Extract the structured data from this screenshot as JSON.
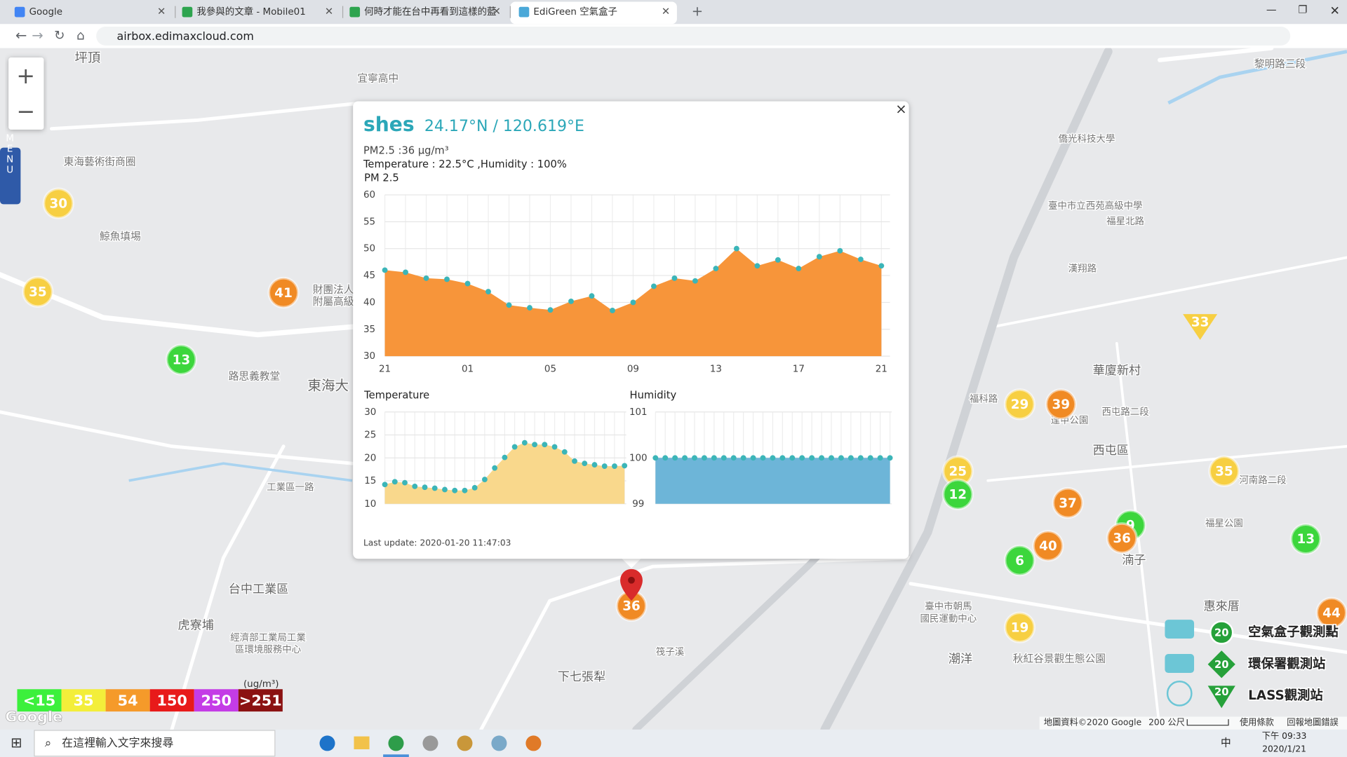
{
  "browser": {
    "tabs": [
      "Google",
      "我參與的文章 - Mobile01",
      "何時才能在台中再看到這樣的藍",
      "EdiGreen 空氣盒子"
    ],
    "url": "airbox.edimaxcloud.com"
  },
  "map": {
    "zoom_in": "+",
    "zoom_out": "−",
    "menu": "MENU",
    "labels": [
      "坪頂",
      "東海藝術街商圈",
      "鯨魚填埸",
      "路思義教堂",
      "東海大",
      "財團法人",
      "附屬高級",
      "宜寧高中",
      "台中工業區",
      "虎寮埔",
      "經濟部工業局工業",
      "區環境服務中心",
      "下七張犁",
      "工業區一路",
      "華廈新村",
      "西屯區",
      "湳子",
      "惠來厝",
      "潮洋",
      "秋紅谷景觀生態公園",
      "臺中市朝馬",
      "國民運動中心",
      "臺中市立西苑高級中學",
      "僑光科技大學",
      "福星北路",
      "福星公園",
      "逢甲公園",
      "黎明路三段",
      "漢翔路",
      "福科路",
      "西屯路二段",
      "河南路二段",
      "筏子溪"
    ],
    "markers": [
      30,
      35,
      41,
      13,
      36,
      29,
      39,
      25,
      12,
      35,
      37,
      9,
      36,
      40,
      6,
      13,
      19,
      44
    ],
    "triangle_marker": 33,
    "legend": {
      "unit": "(ug/m³)",
      "levels": [
        "<15",
        "35",
        "54",
        "150",
        "250",
        ">251"
      ],
      "colors": [
        "#3cf03c",
        "#f3ee3a",
        "#f59a2a",
        "#e81a1a",
        "#c43ce6",
        "#8b1212"
      ]
    },
    "stations": [
      "空氣盒子觀測點",
      "環保署觀測站",
      "LASS觀測站"
    ],
    "station_icon_value": 20,
    "google": "Google",
    "attribution": [
      "地圖資料©2020 Google",
      "200 公尺",
      "使用條款",
      "回報地圖錯誤"
    ]
  },
  "popup": {
    "name": "shes",
    "coords": "24.17°N / 120.619°E",
    "pm_line": "PM2.5 :36 μg/m³",
    "env_line": "Temperature : 22.5°C ,Humidity : 100%",
    "close": "×",
    "last_update": "Last update: 2020-01-20 11:47:03"
  },
  "chart_data": [
    {
      "type": "area",
      "title": "PM 2.5",
      "fill": "#f7953a",
      "point_color": "#3bb5b8",
      "categories": [
        "21",
        null,
        null,
        null,
        "01",
        null,
        null,
        null,
        "05",
        null,
        null,
        null,
        "09",
        null,
        null,
        null,
        "13",
        null,
        null,
        null,
        "17",
        null,
        null,
        null,
        "21"
      ],
      "values": [
        46,
        45.6,
        44.5,
        44.3,
        43.5,
        42,
        39.5,
        39,
        38.6,
        40.2,
        41.2,
        38.5,
        40,
        43,
        44.5,
        44,
        46.3,
        50,
        46.8,
        47.9,
        46.3,
        48.5,
        49.6,
        48,
        46.8
      ],
      "ylim": [
        30,
        60
      ],
      "yticks": [
        30,
        35,
        40,
        45,
        50,
        55,
        60
      ],
      "grid": true
    },
    {
      "type": "area",
      "title": "Temperature",
      "fill": "#f9d88c",
      "point_color": "#3bb5b8",
      "values": [
        14.2,
        14.8,
        14.6,
        13.8,
        13.6,
        13.4,
        13.1,
        12.9,
        12.9,
        13.5,
        15.3,
        17.8,
        20.1,
        22.4,
        23.3,
        22.9,
        22.9,
        22.4,
        21.3,
        19.3,
        18.8,
        18.5,
        18.2,
        18.2,
        18.3
      ],
      "ylim": [
        10,
        30
      ],
      "yticks": [
        10,
        15,
        20,
        25,
        30
      ],
      "grid": true
    },
    {
      "type": "area",
      "title": "Humidity",
      "fill": "#6db5d8",
      "point_color": "#3bb5b8",
      "values": [
        100,
        100,
        100,
        100,
        100,
        100,
        100,
        100,
        100,
        100,
        100,
        100,
        100,
        100,
        100,
        100,
        100,
        100,
        100,
        100,
        100,
        100,
        100,
        100,
        100
      ],
      "ylim": [
        99,
        101
      ],
      "yticks": [
        99,
        100,
        101
      ],
      "grid": true
    }
  ],
  "taskbar": {
    "search": "在這裡輸入文字來搜尋",
    "ime": "中",
    "time": "下午 09:33",
    "date": "2020/1/21"
  }
}
